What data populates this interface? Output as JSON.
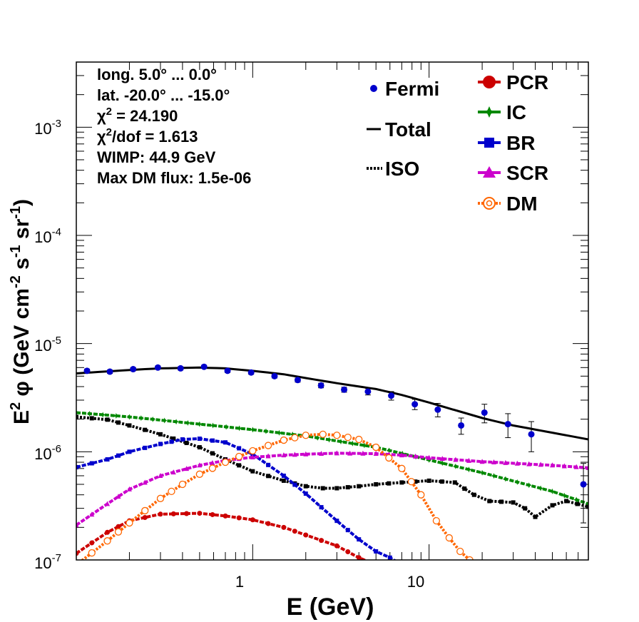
{
  "chart_data": {
    "type": "line",
    "xscale": "log",
    "yscale": "log",
    "xlim": [
      0.1,
      80
    ],
    "ylim": [
      1e-07,
      0.004
    ],
    "xlabel": "E (GeV)",
    "ylabel": "E² φ (GeV cm⁻² s⁻¹ sr⁻¹)",
    "ylabel_parts": {
      "e2": "E",
      "sup2": "2",
      "phi": " φ (GeV cm",
      "m2": "-2",
      "s": " s",
      "m1a": "-1",
      "sr": " sr",
      "m1b": "-1",
      "close": ")"
    },
    "x_tick_labels": [
      {
        "value": 1,
        "label": "1"
      },
      {
        "value": 10,
        "label": "10"
      }
    ],
    "y_tick_labels": [
      {
        "exp": -7,
        "base": "10",
        "sup": "-7"
      },
      {
        "exp": -6,
        "base": "10",
        "sup": "-6"
      },
      {
        "exp": -5,
        "base": "10",
        "sup": "-5"
      },
      {
        "exp": -4,
        "base": "10",
        "sup": "-4"
      },
      {
        "exp": -3,
        "base": "10",
        "sup": "-3"
      }
    ],
    "info_lines": {
      "long": "long. 5.0° ... 0.0°",
      "lat": "lat. -20.0° ... -15.0°",
      "chi_sym": "χ",
      "chi_sup": "2",
      "chi_rest": " = 24.190",
      "chidof_sym": "χ",
      "chidof_sup": "2",
      "chidof_rest": "/dof = 1.613",
      "wimp": "WIMP: 44.9 GeV",
      "maxdm": "Max DM flux: 1.5e-06"
    },
    "legend": {
      "fermi": "Fermi",
      "total": "Total",
      "iso": "ISO",
      "pcr": "PCR",
      "ic": "IC",
      "br": "BR",
      "scr": "SCR",
      "dm": "DM"
    },
    "fermi": {
      "color": "#0000cc",
      "points": [
        {
          "x": 0.115,
          "y": 5.6e-06,
          "err": 2e-07
        },
        {
          "x": 0.155,
          "y": 5.5e-06,
          "err": 2e-07
        },
        {
          "x": 0.21,
          "y": 5.8e-06,
          "err": 2e-07
        },
        {
          "x": 0.29,
          "y": 6e-06,
          "err": 2e-07
        },
        {
          "x": 0.39,
          "y": 5.9e-06,
          "err": 2e-07
        },
        {
          "x": 0.53,
          "y": 6.1e-06,
          "err": 2e-07
        },
        {
          "x": 0.72,
          "y": 5.6e-06,
          "err": 2e-07
        },
        {
          "x": 0.98,
          "y": 5.4e-06,
          "err": 2e-07
        },
        {
          "x": 1.33,
          "y": 5e-06,
          "err": 2e-07
        },
        {
          "x": 1.8,
          "y": 4.6e-06,
          "err": 2e-07
        },
        {
          "x": 2.44,
          "y": 4.1e-06,
          "err": 2e-07
        },
        {
          "x": 3.3,
          "y": 3.75e-06,
          "err": 2e-07
        },
        {
          "x": 4.5,
          "y": 3.6e-06,
          "err": 2.5e-07
        },
        {
          "x": 6.1,
          "y": 3.3e-06,
          "err": 3e-07
        },
        {
          "x": 8.3,
          "y": 2.75e-06,
          "err": 3e-07
        },
        {
          "x": 11.2,
          "y": 2.45e-06,
          "err": 3.5e-07
        },
        {
          "x": 15.2,
          "y": 1.75e-06,
          "err": 3e-07
        },
        {
          "x": 20.6,
          "y": 2.3e-06,
          "err": 4.5e-07
        },
        {
          "x": 28.0,
          "y": 1.8e-06,
          "err": 4.5e-07
        },
        {
          "x": 38.0,
          "y": 1.45e-06,
          "err": 4.5e-07
        },
        {
          "x": 75.0,
          "y": 5e-07,
          "err": 2.8e-07
        }
      ]
    },
    "series": [
      {
        "name": "Total",
        "color": "#000000",
        "style": "solid",
        "marker": "none",
        "x": [
          0.1,
          0.2,
          0.3,
          0.5,
          0.7,
          1.0,
          1.5,
          2,
          3,
          5,
          7,
          10,
          15,
          20,
          30,
          50,
          80
        ],
        "y": [
          5.3e-06,
          5.7e-06,
          5.9e-06,
          6e-06,
          5.9e-06,
          5.6e-06,
          5.2e-06,
          4.8e-06,
          4.3e-06,
          3.8e-06,
          3.35e-06,
          2.85e-06,
          2.35e-06,
          2.05e-06,
          1.75e-06,
          1.5e-06,
          1.3e-06
        ]
      },
      {
        "name": "ISO",
        "color": "#000000",
        "style": "dotted",
        "marker": "square",
        "x": [
          0.1,
          0.15,
          0.2,
          0.3,
          0.5,
          0.7,
          1.0,
          1.5,
          2,
          2.5,
          3,
          4,
          5,
          7,
          10,
          14,
          18,
          22,
          30,
          35,
          40,
          50,
          60,
          80
        ],
        "y": [
          2.1e-06,
          1.98e-06,
          1.75e-06,
          1.45e-06,
          1.1e-06,
          8.5e-07,
          6.6e-07,
          5.4e-07,
          4.8e-07,
          4.6e-07,
          4.6e-07,
          4.8e-07,
          5e-07,
          5.2e-07,
          5.4e-07,
          5.2e-07,
          4e-07,
          3.5e-07,
          3.4e-07,
          3e-07,
          2.5e-07,
          3.2e-07,
          3.5e-07,
          3.1e-07
        ]
      },
      {
        "name": "PCR",
        "color": "#cc0000",
        "style": "dashed",
        "marker": "circle",
        "x": [
          0.1,
          0.15,
          0.2,
          0.3,
          0.5,
          0.7,
          1.0,
          1.5,
          2,
          3,
          4,
          5
        ],
        "y": [
          1.15e-07,
          1.8e-07,
          2.3e-07,
          2.65e-07,
          2.7e-07,
          2.55e-07,
          2.35e-07,
          2e-07,
          1.7e-07,
          1.35e-07,
          1.05e-07,
          9e-08
        ]
      },
      {
        "name": "IC",
        "color": "#008800",
        "style": "dashed",
        "marker": "star",
        "x": [
          0.1,
          0.2,
          0.5,
          1.0,
          2,
          5,
          10,
          20,
          50,
          80
        ],
        "y": [
          2.3e-06,
          2.1e-06,
          1.8e-06,
          1.6e-06,
          1.4e-06,
          1.1e-06,
          8.4e-07,
          6.4e-07,
          4.3e-07,
          3.3e-07
        ]
      },
      {
        "name": "BR",
        "color": "#0000cc",
        "style": "dashed",
        "marker": "square",
        "x": [
          0.1,
          0.15,
          0.2,
          0.3,
          0.4,
          0.5,
          0.7,
          1.0,
          1.5,
          2,
          3,
          4,
          5,
          6,
          7
        ],
        "y": [
          7.2e-07,
          8.5e-07,
          1e-06,
          1.18e-06,
          1.3e-06,
          1.32e-06,
          1.22e-06,
          9.5e-07,
          6e-07,
          4.1e-07,
          2.3e-07,
          1.55e-07,
          1.2e-07,
          1.05e-07,
          9e-08
        ]
      },
      {
        "name": "SCR",
        "color": "#cc00cc",
        "style": "dashed",
        "marker": "triangle",
        "x": [
          0.1,
          0.15,
          0.2,
          0.3,
          0.5,
          0.7,
          1.0,
          1.5,
          2,
          3,
          5,
          7,
          10,
          20,
          50,
          80
        ],
        "y": [
          2.1e-07,
          3.3e-07,
          4.5e-07,
          6e-07,
          7.5e-07,
          8.3e-07,
          8.9e-07,
          9.3e-07,
          9.5e-07,
          9.7e-07,
          9.6e-07,
          9.3e-07,
          8.8e-07,
          8.1e-07,
          7.5e-07,
          7.1e-07
        ]
      },
      {
        "name": "DM",
        "color": "#ff6600",
        "style": "dotted",
        "marker": "open-circle",
        "x": [
          0.1,
          0.15,
          0.2,
          0.3,
          0.4,
          0.5,
          0.7,
          1.0,
          1.5,
          2,
          2.5,
          3,
          4,
          5,
          7,
          9,
          11,
          13,
          15,
          17
        ],
        "y": [
          9e-08,
          1.5e-07,
          2.2e-07,
          3.7e-07,
          5e-07,
          6.2e-07,
          8e-07,
          1.02e-06,
          1.28e-06,
          1.42e-06,
          1.45e-06,
          1.42e-06,
          1.3e-06,
          1.1e-06,
          7e-07,
          4e-07,
          2.3e-07,
          1.6e-07,
          1.2e-07,
          1e-07
        ]
      }
    ]
  }
}
